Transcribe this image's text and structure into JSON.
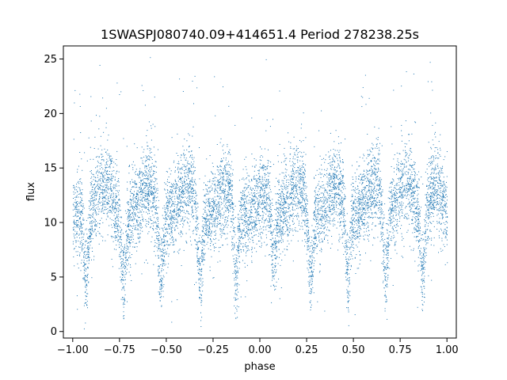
{
  "chart_data": {
    "type": "scatter",
    "title": "1SWASPJ080740.09+414651.4 Period 278238.25s",
    "xlabel": "phase",
    "ylabel": "flux",
    "xlim": [
      -1.05,
      1.05
    ],
    "ylim": [
      -0.6,
      26.2
    ],
    "x_ticks": [
      -1.0,
      -0.75,
      -0.5,
      -0.25,
      0.0,
      0.25,
      0.5,
      0.75,
      1.0
    ],
    "x_tick_labels": [
      "−1.00",
      "−0.75",
      "−0.50",
      "−0.25",
      "0.00",
      "0.25",
      "0.50",
      "0.75",
      "1.00"
    ],
    "y_ticks": [
      0,
      5,
      10,
      15,
      20,
      25
    ],
    "y_tick_labels": [
      "0",
      "5",
      "10",
      "15",
      "20",
      "25"
    ],
    "grid": false,
    "point_color": "#1f77b4",
    "baseline_flux": 10.5,
    "eclipse_minima_phase": [
      -0.93,
      -0.73,
      -0.53,
      -0.32,
      -0.13,
      0.07,
      0.27,
      0.47,
      0.67,
      0.87
    ],
    "eclipse_minimum_flux": 4.5,
    "flare_peaks": [
      {
        "phase": -0.82,
        "flux": 20.5
      },
      {
        "phase": -0.59,
        "flux": 19.5
      },
      {
        "phase": -0.38,
        "flux": 20.2
      },
      {
        "phase": -0.17,
        "flux": 18.5
      },
      {
        "phase": 0.05,
        "flux": 19.0
      },
      {
        "phase": 0.21,
        "flux": 20.5
      },
      {
        "phase": 0.41,
        "flux": 19.8
      },
      {
        "phase": 0.62,
        "flux": 20.2
      },
      {
        "phase": 0.79,
        "flux": 20.8
      },
      {
        "phase": 0.95,
        "flux": 19.5
      }
    ]
  }
}
